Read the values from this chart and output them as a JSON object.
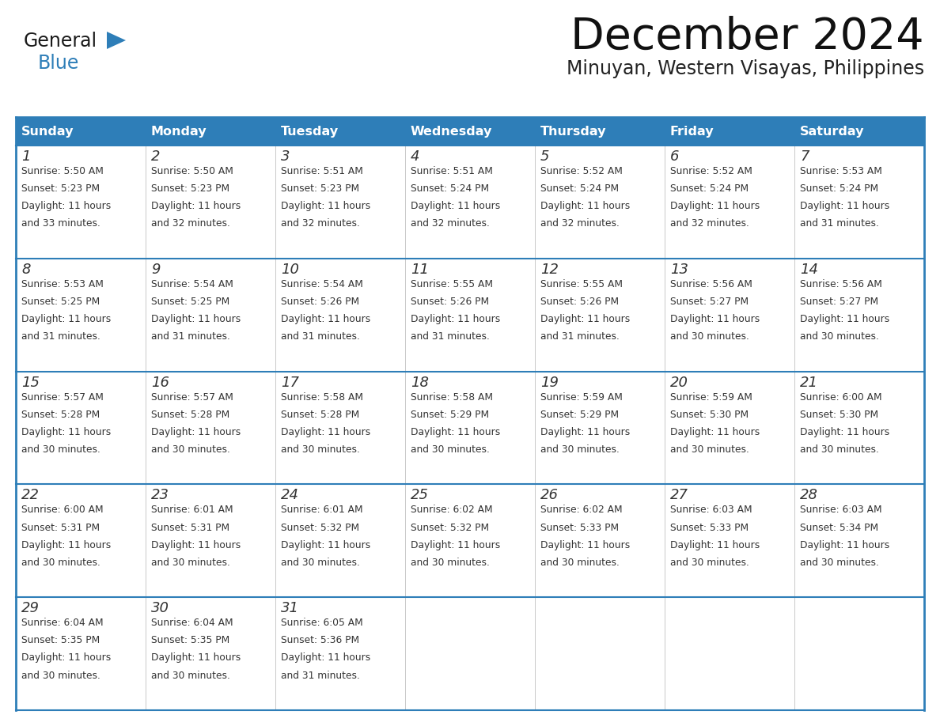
{
  "title": "December 2024",
  "subtitle": "Minuyan, Western Visayas, Philippines",
  "header_color": "#2E7EB8",
  "header_text_color": "#FFFFFF",
  "white_color": "#FFFFFF",
  "border_color": "#2E7EB8",
  "light_border_color": "#AAAAAA",
  "text_color": "#333333",
  "days_of_week": [
    "Sunday",
    "Monday",
    "Tuesday",
    "Wednesday",
    "Thursday",
    "Friday",
    "Saturday"
  ],
  "calendar_data": [
    [
      {
        "day": 1,
        "sunrise": "5:50 AM",
        "sunset": "5:23 PM",
        "daylight_hours": 11,
        "daylight_minutes": 33
      },
      {
        "day": 2,
        "sunrise": "5:50 AM",
        "sunset": "5:23 PM",
        "daylight_hours": 11,
        "daylight_minutes": 32
      },
      {
        "day": 3,
        "sunrise": "5:51 AM",
        "sunset": "5:23 PM",
        "daylight_hours": 11,
        "daylight_minutes": 32
      },
      {
        "day": 4,
        "sunrise": "5:51 AM",
        "sunset": "5:24 PM",
        "daylight_hours": 11,
        "daylight_minutes": 32
      },
      {
        "day": 5,
        "sunrise": "5:52 AM",
        "sunset": "5:24 PM",
        "daylight_hours": 11,
        "daylight_minutes": 32
      },
      {
        "day": 6,
        "sunrise": "5:52 AM",
        "sunset": "5:24 PM",
        "daylight_hours": 11,
        "daylight_minutes": 32
      },
      {
        "day": 7,
        "sunrise": "5:53 AM",
        "sunset": "5:24 PM",
        "daylight_hours": 11,
        "daylight_minutes": 31
      }
    ],
    [
      {
        "day": 8,
        "sunrise": "5:53 AM",
        "sunset": "5:25 PM",
        "daylight_hours": 11,
        "daylight_minutes": 31
      },
      {
        "day": 9,
        "sunrise": "5:54 AM",
        "sunset": "5:25 PM",
        "daylight_hours": 11,
        "daylight_minutes": 31
      },
      {
        "day": 10,
        "sunrise": "5:54 AM",
        "sunset": "5:26 PM",
        "daylight_hours": 11,
        "daylight_minutes": 31
      },
      {
        "day": 11,
        "sunrise": "5:55 AM",
        "sunset": "5:26 PM",
        "daylight_hours": 11,
        "daylight_minutes": 31
      },
      {
        "day": 12,
        "sunrise": "5:55 AM",
        "sunset": "5:26 PM",
        "daylight_hours": 11,
        "daylight_minutes": 31
      },
      {
        "day": 13,
        "sunrise": "5:56 AM",
        "sunset": "5:27 PM",
        "daylight_hours": 11,
        "daylight_minutes": 30
      },
      {
        "day": 14,
        "sunrise": "5:56 AM",
        "sunset": "5:27 PM",
        "daylight_hours": 11,
        "daylight_minutes": 30
      }
    ],
    [
      {
        "day": 15,
        "sunrise": "5:57 AM",
        "sunset": "5:28 PM",
        "daylight_hours": 11,
        "daylight_minutes": 30
      },
      {
        "day": 16,
        "sunrise": "5:57 AM",
        "sunset": "5:28 PM",
        "daylight_hours": 11,
        "daylight_minutes": 30
      },
      {
        "day": 17,
        "sunrise": "5:58 AM",
        "sunset": "5:28 PM",
        "daylight_hours": 11,
        "daylight_minutes": 30
      },
      {
        "day": 18,
        "sunrise": "5:58 AM",
        "sunset": "5:29 PM",
        "daylight_hours": 11,
        "daylight_minutes": 30
      },
      {
        "day": 19,
        "sunrise": "5:59 AM",
        "sunset": "5:29 PM",
        "daylight_hours": 11,
        "daylight_minutes": 30
      },
      {
        "day": 20,
        "sunrise": "5:59 AM",
        "sunset": "5:30 PM",
        "daylight_hours": 11,
        "daylight_minutes": 30
      },
      {
        "day": 21,
        "sunrise": "6:00 AM",
        "sunset": "5:30 PM",
        "daylight_hours": 11,
        "daylight_minutes": 30
      }
    ],
    [
      {
        "day": 22,
        "sunrise": "6:00 AM",
        "sunset": "5:31 PM",
        "daylight_hours": 11,
        "daylight_minutes": 30
      },
      {
        "day": 23,
        "sunrise": "6:01 AM",
        "sunset": "5:31 PM",
        "daylight_hours": 11,
        "daylight_minutes": 30
      },
      {
        "day": 24,
        "sunrise": "6:01 AM",
        "sunset": "5:32 PM",
        "daylight_hours": 11,
        "daylight_minutes": 30
      },
      {
        "day": 25,
        "sunrise": "6:02 AM",
        "sunset": "5:32 PM",
        "daylight_hours": 11,
        "daylight_minutes": 30
      },
      {
        "day": 26,
        "sunrise": "6:02 AM",
        "sunset": "5:33 PM",
        "daylight_hours": 11,
        "daylight_minutes": 30
      },
      {
        "day": 27,
        "sunrise": "6:03 AM",
        "sunset": "5:33 PM",
        "daylight_hours": 11,
        "daylight_minutes": 30
      },
      {
        "day": 28,
        "sunrise": "6:03 AM",
        "sunset": "5:34 PM",
        "daylight_hours": 11,
        "daylight_minutes": 30
      }
    ],
    [
      {
        "day": 29,
        "sunrise": "6:04 AM",
        "sunset": "5:35 PM",
        "daylight_hours": 11,
        "daylight_minutes": 30
      },
      {
        "day": 30,
        "sunrise": "6:04 AM",
        "sunset": "5:35 PM",
        "daylight_hours": 11,
        "daylight_minutes": 30
      },
      {
        "day": 31,
        "sunrise": "6:05 AM",
        "sunset": "5:36 PM",
        "daylight_hours": 11,
        "daylight_minutes": 31
      },
      null,
      null,
      null,
      null
    ]
  ],
  "logo_general_color": "#1a1a1a",
  "logo_blue_color": "#2E7EB8",
  "logo_triangle_color": "#2E7EB8",
  "fig_width": 11.88,
  "fig_height": 9.18,
  "dpi": 100
}
